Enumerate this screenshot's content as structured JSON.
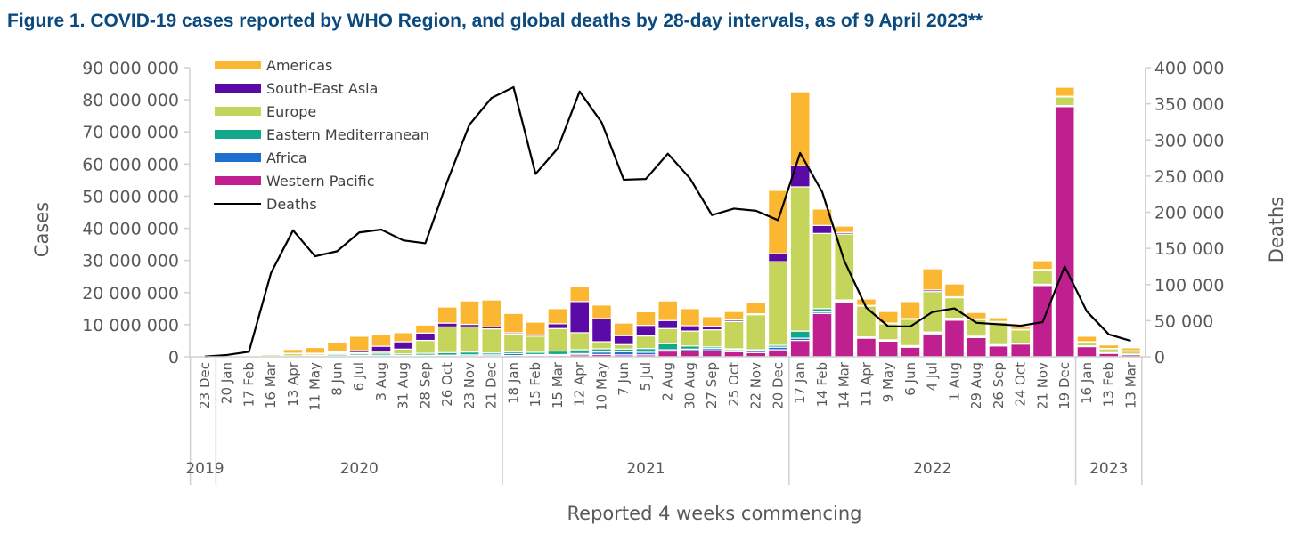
{
  "title": "Figure 1. COVID-19 cases reported by WHO Region, and global deaths by 28-day intervals, as of 9 April 2023**",
  "chart_data": {
    "type": "bar",
    "stacked": true,
    "title": "Figure 1. COVID-19 cases reported by WHO Region, and global deaths by 28-day intervals, as of 9 April 2023**",
    "xlabel": "Reported 4 weeks commencing",
    "ylabel": "Cases",
    "y2label": "Deaths",
    "ylim": [
      0,
      90000000
    ],
    "y2lim": [
      0,
      400000
    ],
    "yticks": [
      "0",
      "10 000 000",
      "20 000 000",
      "30 000 000",
      "40 000 000",
      "50 000 000",
      "60 000 000",
      "70 000 000",
      "80 000 000",
      "90 000 000"
    ],
    "y2ticks": [
      "0",
      "50 000",
      "100 000",
      "150 000",
      "200 000",
      "250 000",
      "300 000",
      "350 000",
      "400 000"
    ],
    "legend_position": "top-left",
    "categories": [
      "23 Dec",
      "20 Jan",
      "17 Feb",
      "16 Mar",
      "13 Apr",
      "11 May",
      "8 Jun",
      "6 Jul",
      "3 Aug",
      "31 Aug",
      "28 Sep",
      "26 Oct",
      "23 Nov",
      "21 Dec",
      "18 Jan",
      "15 Feb",
      "15 Mar",
      "12 Apr",
      "10 May",
      "7 Jun",
      "5 Jul",
      "2 Aug",
      "30 Aug",
      "27 Sep",
      "25 Oct",
      "22 Nov",
      "20 Dec",
      "17 Jan",
      "14 Feb",
      "14 Mar",
      "11 Apr",
      "9 May",
      "6 Jun",
      "4 Jul",
      "1 Aug",
      "29 Aug",
      "26 Sep",
      "24 Oct",
      "21 Nov",
      "19 Dec",
      "16 Jan",
      "13 Feb",
      "13 Mar"
    ],
    "years": [
      {
        "label": "2019",
        "start": 0,
        "end": 0
      },
      {
        "label": "2020",
        "start": 1,
        "end": 13
      },
      {
        "label": "2021",
        "start": 14,
        "end": 26
      },
      {
        "label": "2022",
        "start": 27,
        "end": 39
      },
      {
        "label": "2023",
        "start": 40,
        "end": 42
      }
    ],
    "unit": "millions of cases",
    "series": [
      {
        "name": "Western Pacific",
        "color": "#C0208F",
        "values": [
          0.01,
          0.07,
          0.3,
          0.1,
          0.1,
          0.1,
          0.1,
          0.1,
          0.1,
          0.1,
          0.2,
          0.2,
          0.2,
          0.2,
          0.4,
          0.4,
          0.4,
          0.6,
          0.7,
          0.6,
          0.6,
          1.8,
          1.9,
          1.9,
          1.6,
          1.3,
          2.2,
          5.1,
          13.5,
          17.1,
          5.8,
          4.9,
          3.0,
          7.0,
          11.4,
          6.0,
          3.4,
          4.0,
          22.2,
          77.9,
          3.2,
          1.1,
          0.7
        ]
      },
      {
        "name": "Africa",
        "color": "#1F6FD1",
        "values": [
          0,
          0,
          0,
          0,
          0.05,
          0.1,
          0.2,
          0.3,
          0.4,
          0.3,
          0.3,
          0.3,
          0.4,
          0.4,
          0.6,
          0.3,
          0.3,
          0.4,
          0.8,
          1.0,
          0.8,
          0.4,
          0.5,
          0.7,
          0.6,
          0.6,
          0.8,
          0.7,
          0.5,
          0.3,
          0.2,
          0.2,
          0.3,
          0.4,
          0.3,
          0.2,
          0.2,
          0.1,
          0.2,
          0.1,
          0.1,
          0.1,
          0.05
        ]
      },
      {
        "name": "Eastern Mediterranean",
        "color": "#12A88A",
        "values": [
          0,
          0,
          0,
          0.05,
          0.1,
          0.3,
          0.5,
          0.5,
          0.6,
          0.5,
          0.6,
          0.8,
          0.9,
          0.6,
          0.6,
          0.7,
          1.1,
          1.2,
          1.0,
          0.8,
          1.2,
          1.9,
          1.0,
          0.5,
          0.3,
          0.3,
          0.6,
          2.2,
          1.0,
          0.3,
          0.2,
          0.2,
          0.2,
          0.3,
          0.3,
          0.2,
          0.2,
          0.1,
          0.2,
          0.2,
          0.1,
          0.1,
          0.1
        ]
      },
      {
        "name": "Europe",
        "color": "#C5D45A",
        "values": [
          0,
          0,
          0.01,
          0.5,
          0.8,
          0.5,
          0.4,
          0.4,
          0.6,
          1.5,
          4.0,
          8.0,
          7.8,
          7.5,
          5.5,
          5.0,
          7.0,
          5.3,
          2.2,
          1.4,
          3.9,
          4.7,
          4.6,
          5.3,
          8.5,
          10.9,
          26.0,
          44.9,
          23.4,
          20.5,
          9.6,
          5.0,
          8.2,
          12.6,
          6.4,
          5.2,
          7.0,
          4.2,
          4.4,
          2.7,
          1.2,
          1.2,
          1.0
        ]
      },
      {
        "name": "South-East Asia",
        "color": "#5B0AA8",
        "values": [
          0,
          0,
          0,
          0,
          0.05,
          0.1,
          0.3,
          0.6,
          1.6,
          2.3,
          2.3,
          1.2,
          0.8,
          0.6,
          0.4,
          0.4,
          1.5,
          9.7,
          7.2,
          2.8,
          3.3,
          2.5,
          1.7,
          1.1,
          0.5,
          0.3,
          2.5,
          6.6,
          2.5,
          0.5,
          0.2,
          0.2,
          0.2,
          0.5,
          0.3,
          0.2,
          0.2,
          0.1,
          0.2,
          0.2,
          0.1,
          0.1,
          0.05
        ]
      },
      {
        "name": "Americas",
        "color": "#FBB731",
        "values": [
          0,
          0,
          0,
          0.3,
          1.2,
          1.8,
          3.0,
          4.5,
          3.5,
          2.8,
          2.5,
          5.0,
          7.3,
          8.4,
          6.0,
          4.0,
          4.7,
          4.7,
          4.2,
          3.9,
          4.2,
          6.1,
          5.3,
          3.0,
          2.6,
          3.5,
          19.7,
          23.0,
          5.1,
          2.0,
          2.0,
          3.6,
          5.3,
          6.6,
          4.0,
          2.0,
          1.2,
          0.9,
          2.7,
          2.8,
          1.7,
          1.1,
          0.9
        ]
      }
    ],
    "legend_order": [
      "Americas",
      "South-East Asia",
      "Europe",
      "Eastern Mediterranean",
      "Africa",
      "Western Pacific",
      "Deaths"
    ],
    "deaths": {
      "name": "Deaths",
      "color": "#000000",
      "values": [
        300,
        2500,
        7000,
        116000,
        175000,
        139000,
        146000,
        172000,
        176000,
        161000,
        157000,
        243000,
        321000,
        358000,
        373000,
        253000,
        288000,
        367000,
        324000,
        245000,
        246000,
        281000,
        247000,
        196000,
        205000,
        202000,
        189000,
        282000,
        228000,
        133000,
        68000,
        42000,
        42000,
        62000,
        67000,
        47000,
        45000,
        43000,
        48000,
        125000,
        63000,
        31000,
        22000
      ]
    }
  }
}
